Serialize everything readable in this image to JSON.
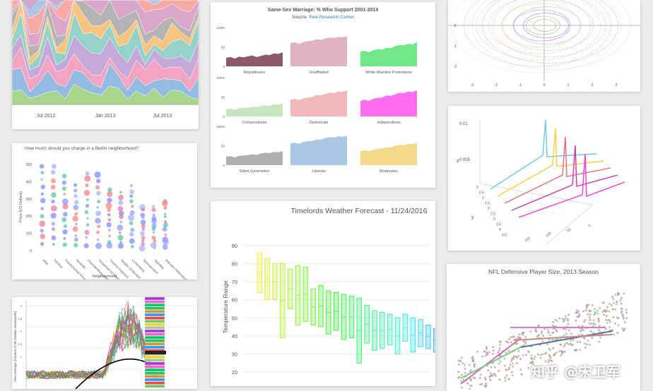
{
  "streamgraph": {
    "type": "area",
    "x_ticks": [
      "Jul 2012",
      "Jan 2013",
      "Jul 2013"
    ],
    "colors": [
      "#a4d486",
      "#8fb8e0",
      "#f3a0bf",
      "#c2a6d8",
      "#8fd0c8",
      "#f8c27a",
      "#b0b0b0",
      "#d9a3c9",
      "#f7a5a0",
      "#a9c4e8"
    ]
  },
  "bubble": {
    "type": "scatter",
    "title": "How much should you charge in a Berlin neighborhood?",
    "ylabel": "Price (US Dollars)",
    "xlabel": "Neighborhood",
    "y_ticks": [
      "500",
      "400",
      "300",
      "200",
      "100",
      "0"
    ],
    "categories": [
      "Mitte",
      "Pankow",
      "Friedrichshain-Kreuzberg",
      "Neukölln",
      "Charlottenburg-Wilm.",
      "Tempelhof-Schöneberg",
      "Treptow-Köpenick",
      "Steglitz-Zehlendorf",
      "Lichtenberg",
      "Reinickendorf",
      "Spandau",
      "Marzahn-Hellersdorf"
    ]
  },
  "ssm": {
    "type": "area",
    "title": "Same-Sex Marriage: % Who Support 2001-2014",
    "source_prefix": "Source: ",
    "source_link": "Pew Research Center",
    "y_ticks": [
      "100%",
      "50",
      "0"
    ],
    "panels": [
      {
        "name": "Republicans",
        "color": "#8e5a6a",
        "values": [
          22,
          24,
          20,
          25,
          23,
          26,
          28,
          24,
          27,
          30,
          29,
          33,
          32,
          36
        ]
      },
      {
        "name": "Unaffiliated",
        "color": "#e0b3c3",
        "values": [
          60,
          62,
          58,
          63,
          65,
          66,
          70,
          68,
          72,
          74,
          73,
          76,
          75,
          78
        ]
      },
      {
        "name": "White Mainline Protestants",
        "color": "#70e88a",
        "values": [
          38,
          40,
          36,
          42,
          44,
          43,
          48,
          47,
          52,
          55,
          54,
          58,
          57,
          62
        ]
      },
      {
        "name": "Conservatives",
        "color": "#c6e4bf",
        "values": [
          18,
          20,
          17,
          21,
          22,
          22,
          25,
          24,
          27,
          28,
          27,
          31,
          30,
          34
        ]
      },
      {
        "name": "Democrats",
        "color": "#f0b8bb",
        "values": [
          43,
          45,
          42,
          47,
          49,
          50,
          55,
          54,
          58,
          61,
          60,
          64,
          63,
          68
        ]
      },
      {
        "name": "Independents",
        "color": "#ff6cf0",
        "values": [
          40,
          43,
          40,
          46,
          48,
          49,
          54,
          53,
          57,
          61,
          60,
          64,
          63,
          67
        ]
      },
      {
        "name": "Silent Generation",
        "color": "#b0b0b0",
        "values": [
          22,
          23,
          20,
          24,
          25,
          26,
          28,
          27,
          30,
          32,
          31,
          34,
          33,
          36
        ]
      },
      {
        "name": "Liberals",
        "color": "#a8c8e6",
        "values": [
          56,
          58,
          55,
          60,
          62,
          62,
          66,
          66,
          70,
          72,
          71,
          74,
          73,
          76
        ]
      },
      {
        "name": "Moderates",
        "color": "#f4d98a",
        "values": [
          36,
          38,
          36,
          40,
          42,
          43,
          46,
          46,
          50,
          52,
          51,
          55,
          54,
          58
        ]
      }
    ]
  },
  "weather": {
    "type": "bar",
    "title": "Timelords Weather Forecast - 11/24/2016",
    "ylabel": "Temperature Range",
    "ylim": [
      20,
      90
    ],
    "y_ticks": [
      20,
      30,
      40,
      50,
      60,
      70,
      80,
      90
    ],
    "ranges": [
      [
        64,
        86
      ],
      [
        60,
        83
      ],
      [
        60,
        80
      ],
      [
        39,
        80
      ],
      [
        55,
        77
      ],
      [
        46,
        79
      ],
      [
        48,
        78
      ],
      [
        46,
        66
      ],
      [
        45,
        68
      ],
      [
        41,
        65
      ],
      [
        43,
        64
      ],
      [
        38,
        63
      ],
      [
        39,
        62
      ],
      [
        25,
        61
      ],
      [
        36,
        57
      ],
      [
        32,
        54
      ],
      [
        33,
        53
      ],
      [
        35,
        52
      ],
      [
        30,
        50
      ],
      [
        37,
        52
      ],
      [
        31,
        50
      ],
      [
        34,
        49
      ],
      [
        33,
        46
      ],
      [
        31,
        44
      ]
    ]
  },
  "spiral": {
    "type": "line",
    "x_ticks": [
      "-3",
      "-2",
      "-1",
      "0",
      "1",
      "2",
      "3"
    ],
    "y_ticks": [
      "0",
      "-1",
      "-2"
    ]
  },
  "ridge3d": {
    "type": "line",
    "z_ticks": [
      "0.01",
      "0.005"
    ],
    "z_label": "z",
    "y_label": "y",
    "y_ticks": [
      "0",
      "0.5",
      "1",
      "1.5",
      "2",
      "2.5",
      "3",
      "3.5",
      "4",
      "4.5"
    ],
    "x_ticks": [
      "0",
      "50",
      "100",
      "150"
    ],
    "colors": [
      "#66ccee",
      "#ffcc33",
      "#ee6677",
      "#cc33aa",
      "#ff33dd"
    ]
  },
  "nfl": {
    "type": "scatter",
    "title": "NFL Defensive Player Size, 2013 Season"
  },
  "lines": {
    "type": "line",
    "ylabel": "View Average (Fraction of the median view/month)",
    "y_ticks": [
      "3",
      "2.5",
      "2",
      "1.5",
      "1"
    ],
    "legend_count": 28
  },
  "watermark": "知乎 @宋卫军"
}
